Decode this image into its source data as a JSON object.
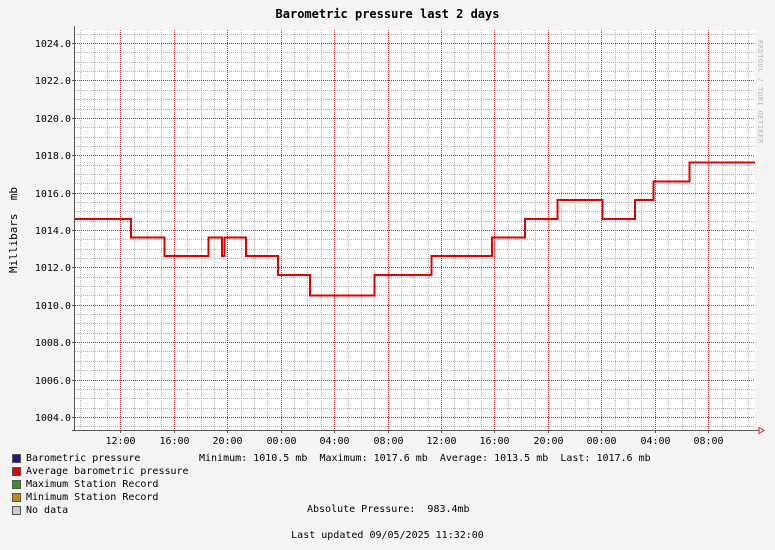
{
  "title": "Barometric pressure last 2 days",
  "ylabel": "Millibars  mb",
  "watermark": "RRDTOOL / TOBI OETIKER",
  "colors": {
    "background": "#f4f4f4",
    "plot_background": "#ffffff",
    "minor_grid": "#b0b0b0",
    "major_grid": "#c03030",
    "line": "#e00000"
  },
  "legend": [
    {
      "label": "Barometric pressure",
      "color": "#1a1a8c"
    },
    {
      "label": "Average barometric pressure",
      "color": "#e00000"
    },
    {
      "label": "Maximum Station Record",
      "color": "#2a9a1a"
    },
    {
      "label": "Minimum Station Record",
      "color": "#c08a10"
    },
    {
      "label": "No data",
      "color": "#cccccc"
    }
  ],
  "stats": {
    "minimum_label": "Minimum:",
    "minimum": "1010.5 mb",
    "maximum_label": "Maximum:",
    "maximum": "1017.6 mb",
    "average_label": "Average:",
    "average": "1013.5 mb",
    "last_label": "Last:",
    "last": "1017.6 mb"
  },
  "absolute_pressure_label": "Absolute Pressure:",
  "absolute_pressure": "983.4mb",
  "last_updated_label": "Last updated",
  "last_updated": "09/05/2025 11:32:00",
  "chart_data": {
    "type": "line",
    "title": "Barometric pressure last 2 days",
    "xlabel": "",
    "ylabel": "Millibars  mb",
    "xlim_hours": [
      8.6,
      59.5
    ],
    "ylim": [
      1003.3,
      1024.7
    ],
    "y_ticks": [
      "1004.0",
      "1006.0",
      "1008.0",
      "1010.0",
      "1012.0",
      "1014.0",
      "1016.0",
      "1018.0",
      "1020.0",
      "1022.0",
      "1024.0"
    ],
    "x_ticks": [
      {
        "h": 12,
        "label": "12:00"
      },
      {
        "h": 16,
        "label": "16:00"
      },
      {
        "h": 20,
        "label": "20:00"
      },
      {
        "h": 24,
        "label": "00:00"
      },
      {
        "h": 28,
        "label": "04:00"
      },
      {
        "h": 32,
        "label": "08:00"
      },
      {
        "h": 36,
        "label": "12:00"
      },
      {
        "h": 40,
        "label": "16:00"
      },
      {
        "h": 44,
        "label": "20:00"
      },
      {
        "h": 48,
        "label": "00:00"
      },
      {
        "h": 52,
        "label": "04:00"
      },
      {
        "h": 56,
        "label": "08:00"
      }
    ],
    "grid": true,
    "series": [
      {
        "name": "Average barometric pressure",
        "color": "#e00000",
        "step": true,
        "points": [
          [
            8.6,
            1014.6
          ],
          [
            12.8,
            1013.6
          ],
          [
            15.3,
            1012.6
          ],
          [
            18.6,
            1013.6
          ],
          [
            19.6,
            1012.6
          ],
          [
            19.8,
            1013.6
          ],
          [
            21.4,
            1012.6
          ],
          [
            23.8,
            1011.6
          ],
          [
            26.2,
            1010.5
          ],
          [
            31.0,
            1011.6
          ],
          [
            35.3,
            1012.6
          ],
          [
            39.8,
            1013.6
          ],
          [
            42.3,
            1014.6
          ],
          [
            44.7,
            1015.6
          ],
          [
            48.1,
            1014.6
          ],
          [
            50.5,
            1015.6
          ],
          [
            51.9,
            1016.6
          ],
          [
            54.6,
            1017.6
          ],
          [
            59.5,
            1017.6
          ]
        ]
      }
    ]
  }
}
